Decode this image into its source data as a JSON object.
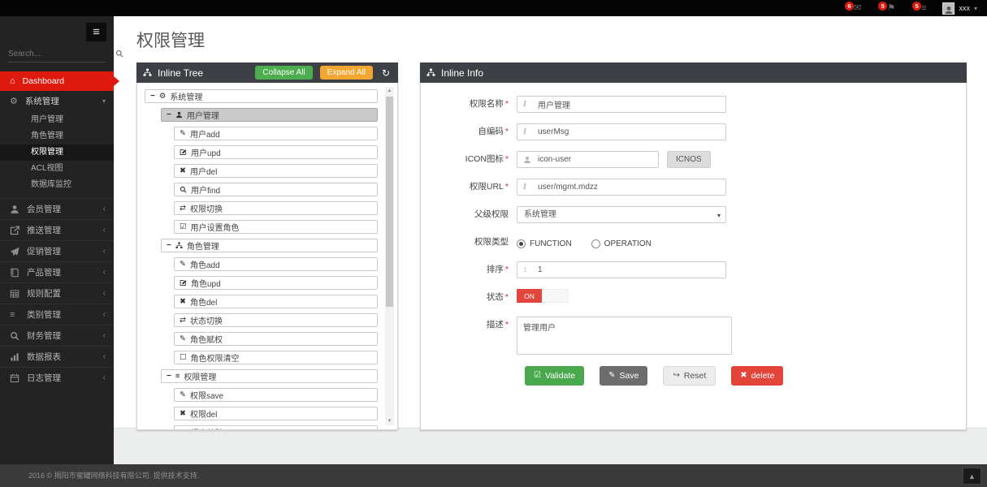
{
  "colors": {
    "accent_red": "#e0190e",
    "green": "#4cae4c",
    "orange": "#f3a631",
    "header_dark": "#3d4045",
    "button_green": "#49a74d",
    "button_gray": "#6d6d6d",
    "button_red": "#e2443a",
    "status_on": "#e2453c"
  },
  "topbar": {
    "notifications": [
      {
        "icon": "envelope",
        "count": "6"
      },
      {
        "icon": "flag",
        "count": "5"
      },
      {
        "icon": "tasks",
        "count": "5"
      }
    ],
    "user": {
      "name": "xxx"
    }
  },
  "sidebar": {
    "search_placeholder": "Search...",
    "dashboard_label": "Dashboard",
    "group": {
      "label": "系统管理",
      "icon": "gears",
      "children": [
        {
          "label": "用户管理",
          "selected": false
        },
        {
          "label": "角色管理",
          "selected": false
        },
        {
          "label": "权限管理",
          "selected": true
        },
        {
          "label": "ACL视图",
          "selected": false
        },
        {
          "label": "数据库监控",
          "selected": false
        }
      ]
    },
    "items": [
      {
        "icon": "member",
        "label": "会员管理"
      },
      {
        "icon": "share",
        "label": "推送管理"
      },
      {
        "icon": "send",
        "label": "促销管理"
      },
      {
        "icon": "book",
        "label": "产品管理"
      },
      {
        "icon": "table",
        "label": "规则配置"
      },
      {
        "icon": "list",
        "label": "类别管理"
      },
      {
        "icon": "finance-search",
        "label": "财务管理"
      },
      {
        "icon": "chart",
        "label": "数据报表"
      },
      {
        "icon": "log",
        "label": "日志管理"
      }
    ]
  },
  "page": {
    "title": "权限管理"
  },
  "tree_panel": {
    "title": "Inline Tree",
    "collapse_all": "Collapse All",
    "expand_all": "Expand All",
    "rows": [
      {
        "level": 0,
        "icon": "gears",
        "label": "系统管理",
        "parent": true,
        "selected": false
      },
      {
        "level": 1,
        "icon": "user",
        "label": "用户管理",
        "parent": true,
        "selected": true
      },
      {
        "level": 2,
        "icon": "pencil",
        "label": "用户add",
        "parent": false,
        "selected": false
      },
      {
        "level": 2,
        "icon": "edit",
        "label": "用户upd",
        "parent": false,
        "selected": false
      },
      {
        "level": 2,
        "icon": "close",
        "label": "用户del",
        "parent": false,
        "selected": false
      },
      {
        "level": 2,
        "icon": "search",
        "label": "用户find",
        "parent": false,
        "selected": false
      },
      {
        "level": 2,
        "icon": "retweet",
        "label": "权限切换",
        "parent": false,
        "selected": false
      },
      {
        "level": 2,
        "icon": "check-square",
        "label": "用户设置角色",
        "parent": false,
        "selected": false
      },
      {
        "level": 1,
        "icon": "sitemap",
        "label": "角色管理",
        "parent": true,
        "selected": false
      },
      {
        "level": 2,
        "icon": "pencil",
        "label": "角色add",
        "parent": false,
        "selected": false
      },
      {
        "level": 2,
        "icon": "edit",
        "label": "角色upd",
        "parent": false,
        "selected": false
      },
      {
        "level": 2,
        "icon": "close",
        "label": "角色del",
        "parent": false,
        "selected": false
      },
      {
        "level": 2,
        "icon": "retweet",
        "label": "状态切换",
        "parent": false,
        "selected": false
      },
      {
        "level": 2,
        "icon": "pencil",
        "label": "角色赋权",
        "parent": false,
        "selected": false
      },
      {
        "level": 2,
        "icon": "square",
        "label": "角色权限清空",
        "parent": false,
        "selected": false
      },
      {
        "level": 1,
        "icon": "list",
        "label": "权限管理",
        "parent": true,
        "selected": false
      },
      {
        "level": 2,
        "icon": "pencil",
        "label": "权限save",
        "parent": false,
        "selected": false
      },
      {
        "level": 2,
        "icon": "close",
        "label": "权限del",
        "parent": false,
        "selected": false
      },
      {
        "level": 2,
        "icon": "edit",
        "label": "提交校验",
        "parent": false,
        "selected": false
      }
    ]
  },
  "info_panel": {
    "title": "Inline Info",
    "fields": {
      "name": {
        "label": "权限名称",
        "required": "*",
        "value": "用户管理"
      },
      "code": {
        "label": "自编码",
        "required": "*",
        "value": "userMsg"
      },
      "icon": {
        "label": "ICON图标",
        "required": "*",
        "value": "icon-user",
        "button": "ICNOS"
      },
      "url": {
        "label": "权限URL",
        "required": "*",
        "value": "user/mgmt.mdzz"
      },
      "parent": {
        "label": "父级权限",
        "value": "系统管理"
      },
      "type": {
        "label": "权限类型",
        "options": [
          {
            "label": "FUNCTION",
            "selected": true
          },
          {
            "label": "OPERATION",
            "selected": false
          }
        ]
      },
      "sort": {
        "label": "排序",
        "required": "*",
        "value": "1"
      },
      "status": {
        "label": "状态",
        "required": "*",
        "value": "ON"
      },
      "desc": {
        "label": "描述",
        "required": "*",
        "value": "管理用户"
      }
    },
    "buttons": [
      {
        "label": "Validate",
        "icon": "check-square"
      },
      {
        "label": "Save",
        "icon": "pencil"
      },
      {
        "label": "Reset",
        "icon": "reset-arrow"
      },
      {
        "label": "delete",
        "icon": "close"
      }
    ]
  },
  "footer": {
    "text": "2016 © 揭阳市蜜罐网络科技有限公司. 提供技术支持."
  }
}
